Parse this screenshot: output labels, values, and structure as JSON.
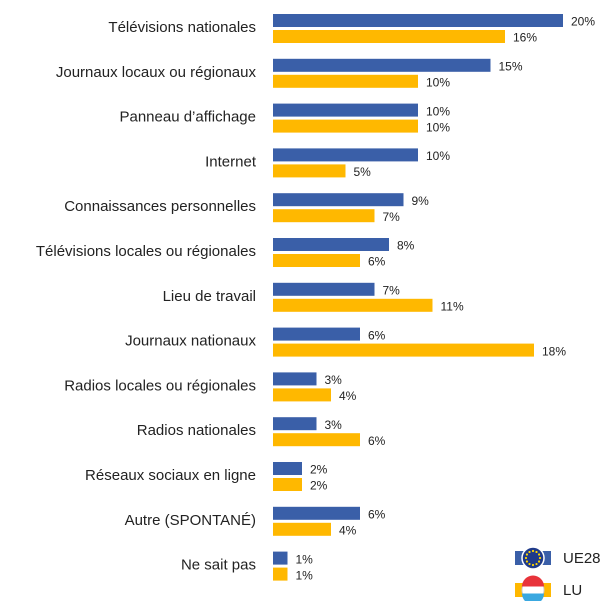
{
  "chart_data": {
    "type": "barh",
    "categories": [
      "Télévisions nationales",
      "Journaux locaux ou régionaux",
      "Panneau d’affichage",
      "Internet",
      "Connaissances personnelles",
      "Télévisions locales ou régionales",
      "Lieu de travail",
      "Journaux nationaux",
      "Radios locales ou régionales",
      "Radios nationales",
      "Réseaux sociaux en ligne",
      "Autre (SPONTANÉ)",
      "Ne sait pas"
    ],
    "series": [
      {
        "name": "UE28",
        "color": "#3a5fa8",
        "values": [
          20,
          15,
          10,
          10,
          9,
          8,
          7,
          6,
          3,
          3,
          2,
          6,
          1
        ],
        "value_labels": [
          "20%",
          "15%",
          "10%",
          "10%",
          "9%",
          "8%",
          "7%",
          "6%",
          "3%",
          "3%",
          "2%",
          "6%",
          "1%"
        ]
      },
      {
        "name": "LU",
        "color": "#ffb800",
        "values": [
          16,
          10,
          10,
          5,
          7,
          6,
          11,
          18,
          4,
          6,
          2,
          4,
          1
        ],
        "value_labels": [
          "16%",
          "10%",
          "10%",
          "5%",
          "7%",
          "6%",
          "11%",
          "18%",
          "4%",
          "6%",
          "2%",
          "4%",
          "1%"
        ]
      }
    ]
  }
}
